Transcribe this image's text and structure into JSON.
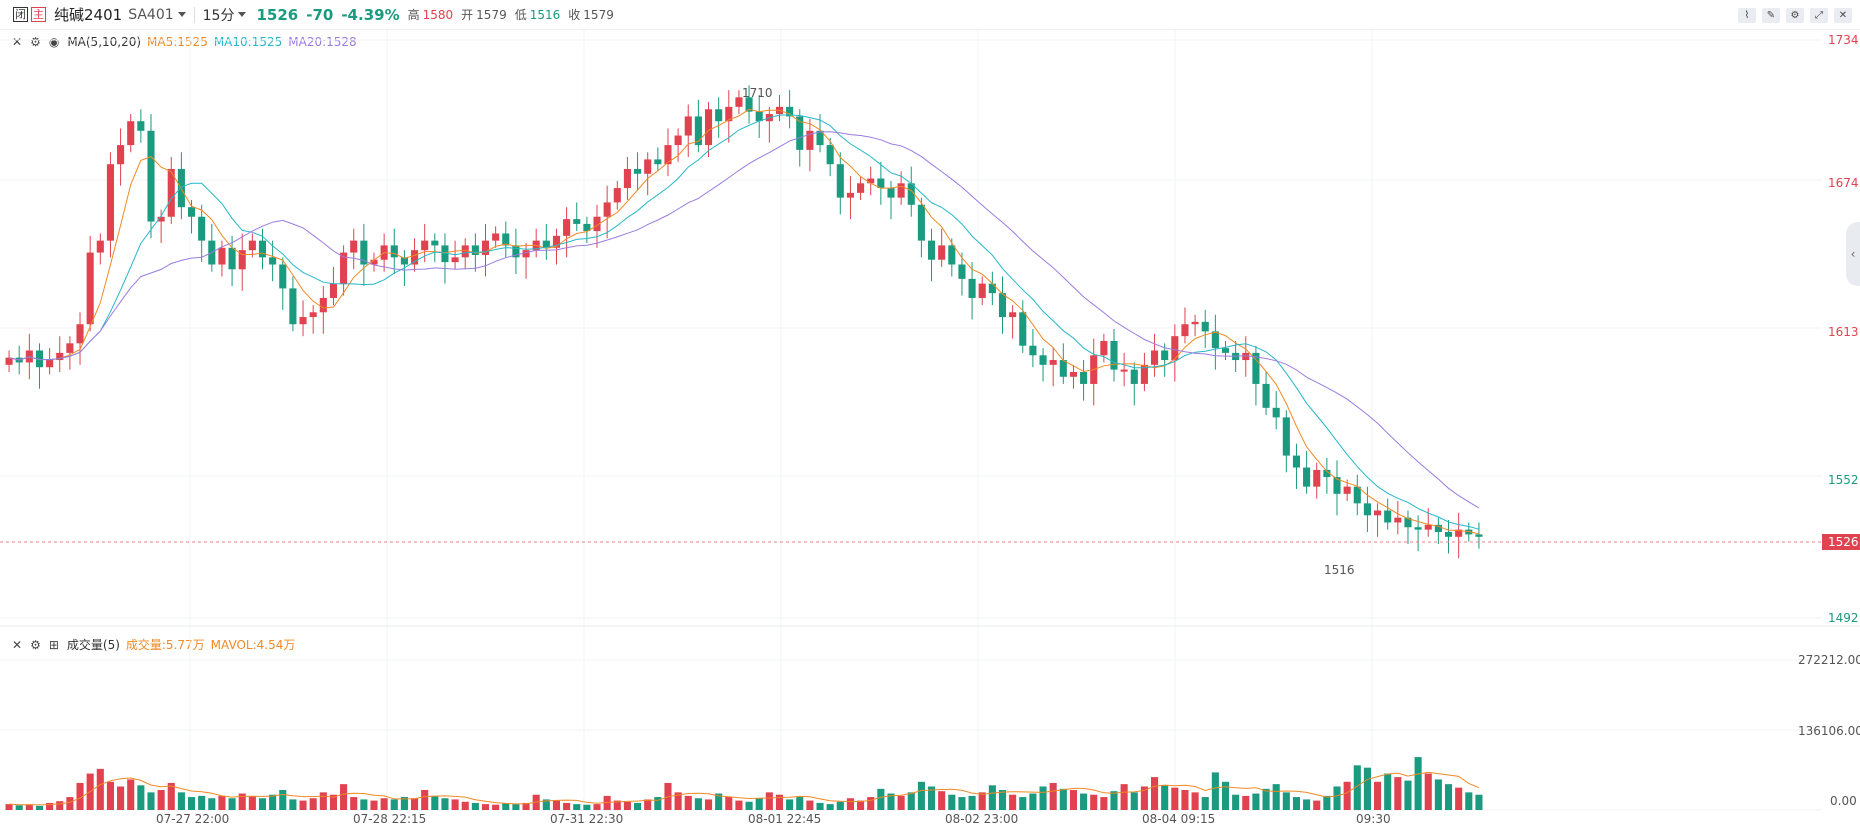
{
  "header": {
    "btn1": "闭",
    "btn2": "主",
    "symbol_name": "纯碱2401",
    "symbol_code": "SA401",
    "interval": "15分",
    "last": "1526",
    "change": "-70",
    "change_pct": "-4.39%",
    "high_label": "高",
    "high": "1580",
    "open_label": "开",
    "open": "1579",
    "low_label": "低",
    "low": "1516",
    "close_label": "收",
    "close": "1579"
  },
  "main_legend": {
    "title": "MA(5,10,20)",
    "ma5": "MA5:1525",
    "ma10": "MA10:1525",
    "ma20": "MA20:1528"
  },
  "vol_legend": {
    "title": "成交量(5)",
    "vol": "成交量:5.77万",
    "mavol": "MAVOL:4.54万"
  },
  "colors": {
    "up": "#e0424f",
    "down": "#1a9a7e",
    "ma5": "#f08a24",
    "ma10": "#25b7c9",
    "ma20": "#9b7be0",
    "grid": "#f1f3f6"
  },
  "price_axis": [
    "1734",
    "1674",
    "1613",
    "1552",
    "1492"
  ],
  "last_price_tag": "1526",
  "vol_axis": [
    "272212.00",
    "136106.00",
    "0.00"
  ],
  "time_axis": [
    "07-27 22:00",
    "07-28 22:15",
    "07-31 22:30",
    "08-01 22:45",
    "08-02 23:00",
    "08-04 09:15",
    "09:30"
  ],
  "annotations": {
    "max": "1710",
    "min": "1516"
  },
  "chart_data": {
    "type": "candlestick",
    "ylim": [
      1492,
      1734
    ],
    "vol_ylim": [
      0,
      272212
    ],
    "series_names": [
      "MA5",
      "MA10",
      "MA20"
    ],
    "closes": [
      1601,
      1599,
      1604,
      1597,
      1600,
      1603,
      1607,
      1615,
      1645,
      1650,
      1682,
      1690,
      1700,
      1696,
      1658,
      1660,
      1680,
      1664,
      1660,
      1650,
      1640,
      1647,
      1638,
      1646,
      1650,
      1643,
      1640,
      1630,
      1615,
      1618,
      1620,
      1626,
      1632,
      1645,
      1650,
      1640,
      1642,
      1648,
      1643,
      1640,
      1646,
      1650,
      1648,
      1641,
      1643,
      1648,
      1644,
      1650,
      1653,
      1648,
      1643,
      1646,
      1650,
      1647,
      1652,
      1659,
      1657,
      1654,
      1660,
      1666,
      1672,
      1680,
      1678,
      1684,
      1682,
      1690,
      1694,
      1702,
      1690,
      1705,
      1700,
      1706,
      1710,
      1704,
      1700,
      1703,
      1706,
      1702,
      1688,
      1696,
      1690,
      1682,
      1668,
      1670,
      1674,
      1676,
      1672,
      1668,
      1674,
      1665,
      1650,
      1642,
      1648,
      1640,
      1634,
      1626,
      1632,
      1628,
      1618,
      1620,
      1606,
      1602,
      1598,
      1600,
      1593,
      1595,
      1590,
      1602,
      1608,
      1596,
      1596,
      1590,
      1598,
      1604,
      1600,
      1610,
      1615,
      1616,
      1612,
      1605,
      1603,
      1600,
      1603,
      1590,
      1580,
      1576,
      1560,
      1555,
      1547,
      1554,
      1551,
      1544,
      1547,
      1540,
      1535,
      1537,
      1532,
      1534,
      1530,
      1529,
      1531,
      1528,
      1526,
      1529,
      1527,
      1526
    ],
    "opens": [
      1598,
      1601,
      1599,
      1604,
      1597,
      1600,
      1603,
      1607,
      1615,
      1645,
      1650,
      1682,
      1690,
      1700,
      1696,
      1658,
      1660,
      1680,
      1664,
      1660,
      1650,
      1640,
      1647,
      1638,
      1646,
      1650,
      1643,
      1640,
      1630,
      1615,
      1618,
      1620,
      1626,
      1632,
      1645,
      1650,
      1640,
      1642,
      1648,
      1643,
      1640,
      1646,
      1650,
      1648,
      1641,
      1643,
      1648,
      1644,
      1650,
      1653,
      1648,
      1643,
      1646,
      1650,
      1647,
      1652,
      1659,
      1657,
      1654,
      1660,
      1666,
      1672,
      1680,
      1678,
      1684,
      1682,
      1690,
      1694,
      1702,
      1690,
      1705,
      1700,
      1706,
      1710,
      1704,
      1700,
      1703,
      1706,
      1702,
      1688,
      1696,
      1690,
      1682,
      1668,
      1670,
      1674,
      1676,
      1672,
      1668,
      1674,
      1665,
      1650,
      1642,
      1648,
      1640,
      1634,
      1626,
      1632,
      1628,
      1618,
      1620,
      1606,
      1602,
      1598,
      1600,
      1593,
      1595,
      1590,
      1602,
      1608,
      1596,
      1596,
      1590,
      1598,
      1604,
      1600,
      1610,
      1615,
      1616,
      1612,
      1605,
      1603,
      1600,
      1603,
      1590,
      1580,
      1576,
      1560,
      1555,
      1547,
      1554,
      1551,
      1544,
      1547,
      1540,
      1535,
      1537,
      1532,
      1534,
      1530,
      1529,
      1531,
      1528,
      1526,
      1529,
      1527
    ],
    "volumes": [
      10000,
      8000,
      9500,
      7000,
      12000,
      15000,
      22000,
      46000,
      62000,
      70000,
      48000,
      40000,
      52000,
      42000,
      30000,
      34000,
      46000,
      30000,
      22000,
      24000,
      20000,
      24000,
      20000,
      28000,
      24000,
      20000,
      26000,
      34000,
      18000,
      16000,
      20000,
      30000,
      26000,
      44000,
      22000,
      18000,
      16000,
      20000,
      18000,
      22000,
      20000,
      34000,
      24000,
      20000,
      18000,
      14000,
      12000,
      10000,
      9000,
      11000,
      10000,
      12000,
      26000,
      18000,
      16000,
      12000,
      10000,
      9000,
      10000,
      24000,
      16000,
      14000,
      12000,
      18000,
      22000,
      46000,
      30000,
      24000,
      20000,
      18000,
      28000,
      22000,
      16000,
      14000,
      20000,
      30000,
      26000,
      18000,
      22000,
      16000,
      12000,
      10000,
      14000,
      20000,
      16000,
      22000,
      36000,
      28000,
      24000,
      30000,
      48000,
      40000,
      32000,
      26000,
      22000,
      24000,
      30000,
      42000,
      34000,
      26000,
      22000,
      28000,
      40000,
      46000,
      36000,
      34000,
      28000,
      26000,
      22000,
      32000,
      44000,
      30000,
      40000,
      56000,
      42000,
      38000,
      34000,
      30000,
      22000,
      64000,
      48000,
      26000,
      24000,
      28000,
      36000,
      44000,
      30000,
      22000,
      18000,
      16000,
      24000,
      40000,
      48000,
      76000,
      72000,
      48000,
      62000,
      56000,
      50000,
      90000,
      62000,
      52000,
      44000,
      38000,
      30000,
      26000
    ]
  }
}
